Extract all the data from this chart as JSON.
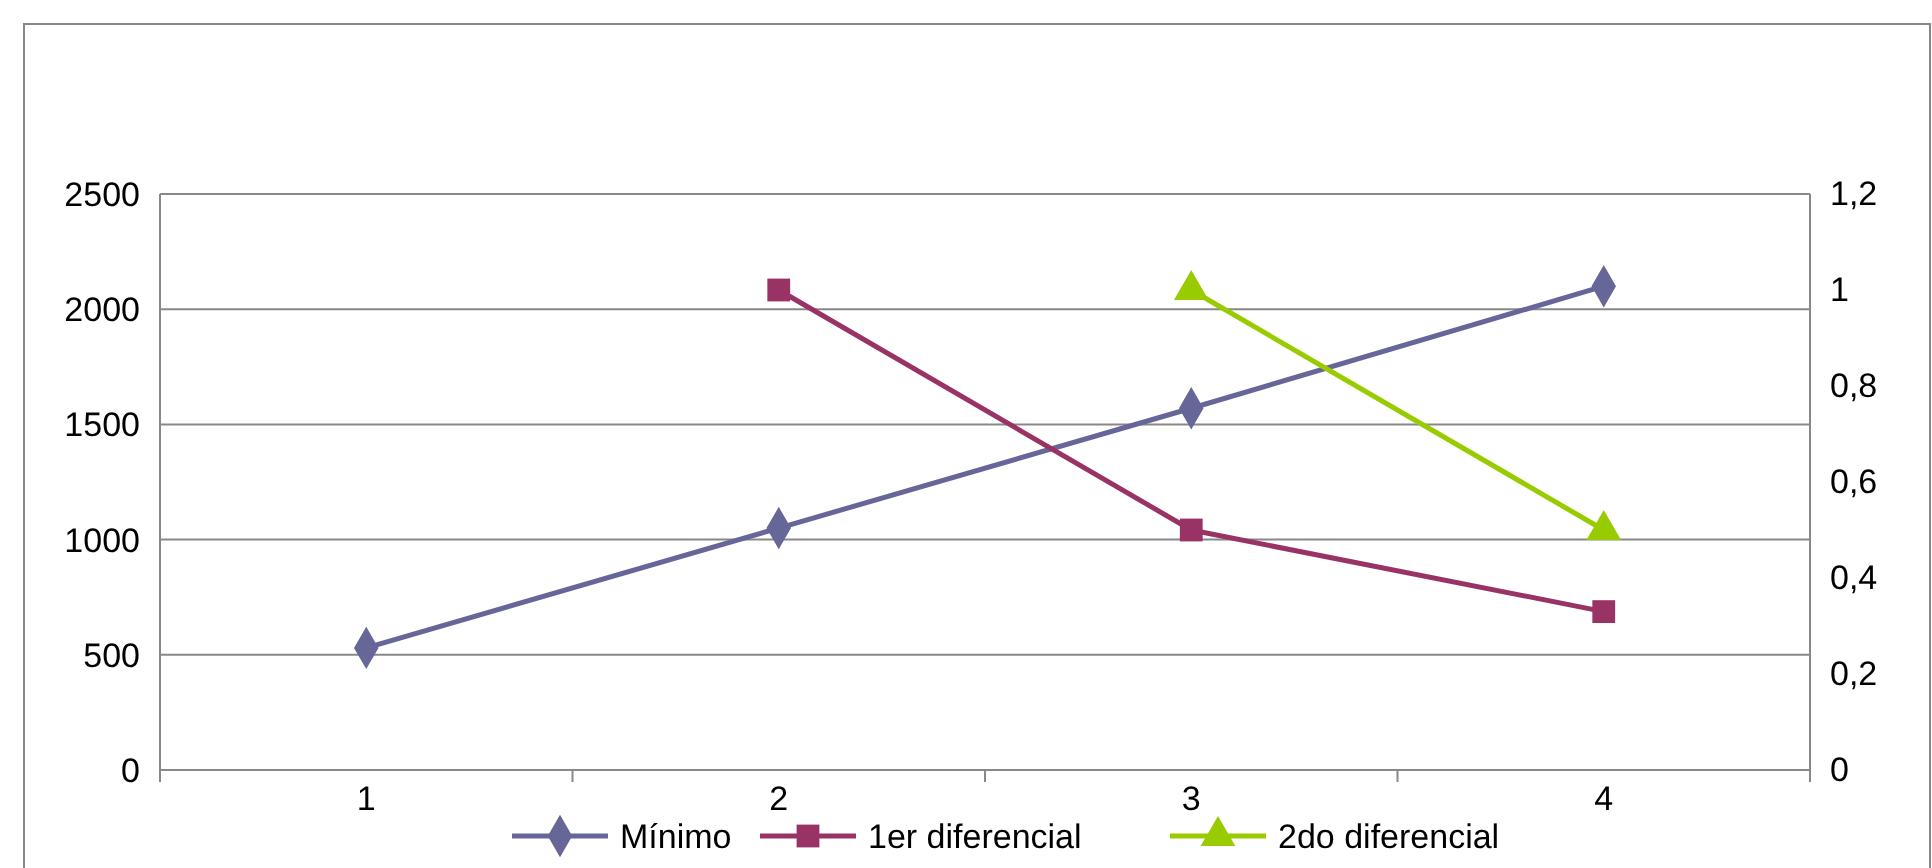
{
  "chart_data": {
    "type": "line",
    "categories": [
      "1",
      "2",
      "3",
      "4"
    ],
    "series": [
      {
        "name": "Mínimo",
        "color": "#666699",
        "values": [
          530,
          1050,
          1570,
          2100
        ],
        "marker": "diamond"
      },
      {
        "name": "1er diferencial",
        "color": "#993366",
        "values": [
          null,
          1,
          0.5,
          0.33
        ],
        "axis": "y2",
        "marker": "square"
      },
      {
        "name": "2do diferencial",
        "color": "#99cc00",
        "values": [
          null,
          null,
          1,
          0.5
        ],
        "axis": "y2",
        "marker": "triangle"
      }
    ],
    "ylim": [
      0,
      2500
    ],
    "yticks": [
      0,
      500,
      1000,
      1500,
      2000,
      2500
    ],
    "y2lim": [
      0,
      1.2
    ],
    "y2ticks": [
      0,
      {
        "value": 0.2,
        "label": "0,2"
      },
      {
        "value": 0.4,
        "label": "0,4"
      },
      {
        "value": 0.6,
        "label": "0,6"
      },
      {
        "value": 0.8,
        "label": "0,8"
      },
      1,
      {
        "value": 1.2,
        "label": "1,2"
      }
    ],
    "grid": "y",
    "legend": "bottom"
  }
}
